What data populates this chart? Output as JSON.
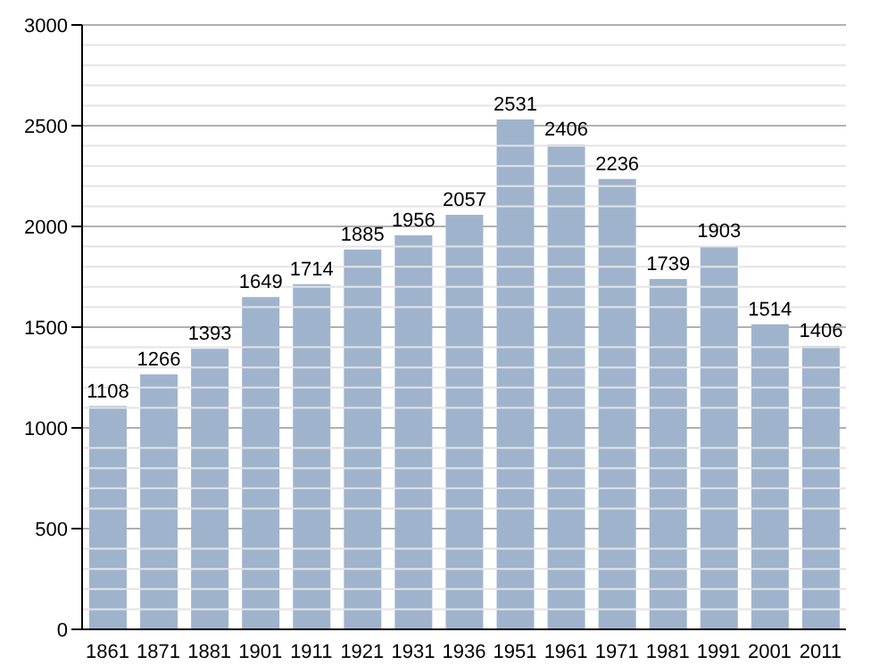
{
  "chart_data": {
    "type": "bar",
    "categories": [
      "1861",
      "1871",
      "1881",
      "1901",
      "1911",
      "1921",
      "1931",
      "1936",
      "1951",
      "1961",
      "1971",
      "1981",
      "1991",
      "2001",
      "2011"
    ],
    "values": [
      1108,
      1266,
      1393,
      1649,
      1714,
      1885,
      1956,
      2057,
      2531,
      2406,
      2236,
      1739,
      1903,
      1514,
      1406
    ],
    "color": "#9fb4cc",
    "ylim": [
      0,
      3000
    ],
    "yticks": [
      0,
      500,
      1000,
      1500,
      2000,
      2500,
      3000
    ],
    "grid": "y",
    "data_labels": true
  }
}
